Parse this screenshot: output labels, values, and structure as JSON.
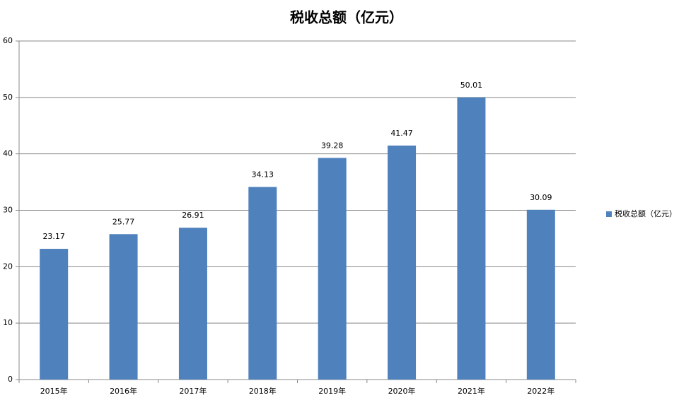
{
  "chart_data": {
    "type": "bar",
    "title": "税收总额（亿元）",
    "categories": [
      "2015年",
      "2016年",
      "2017年",
      "2018年",
      "2019年",
      "2020年",
      "2021年",
      "2022年"
    ],
    "series": [
      {
        "name": "税收总额（亿元）",
        "color": "#4f81bd",
        "values": [
          23.17,
          25.77,
          26.91,
          34.13,
          39.28,
          41.47,
          50.01,
          30.09
        ]
      }
    ],
    "ylim": [
      0,
      60
    ],
    "yticks": [
      0,
      10,
      20,
      30,
      40,
      50,
      60
    ],
    "grid": true,
    "legend": "right"
  }
}
